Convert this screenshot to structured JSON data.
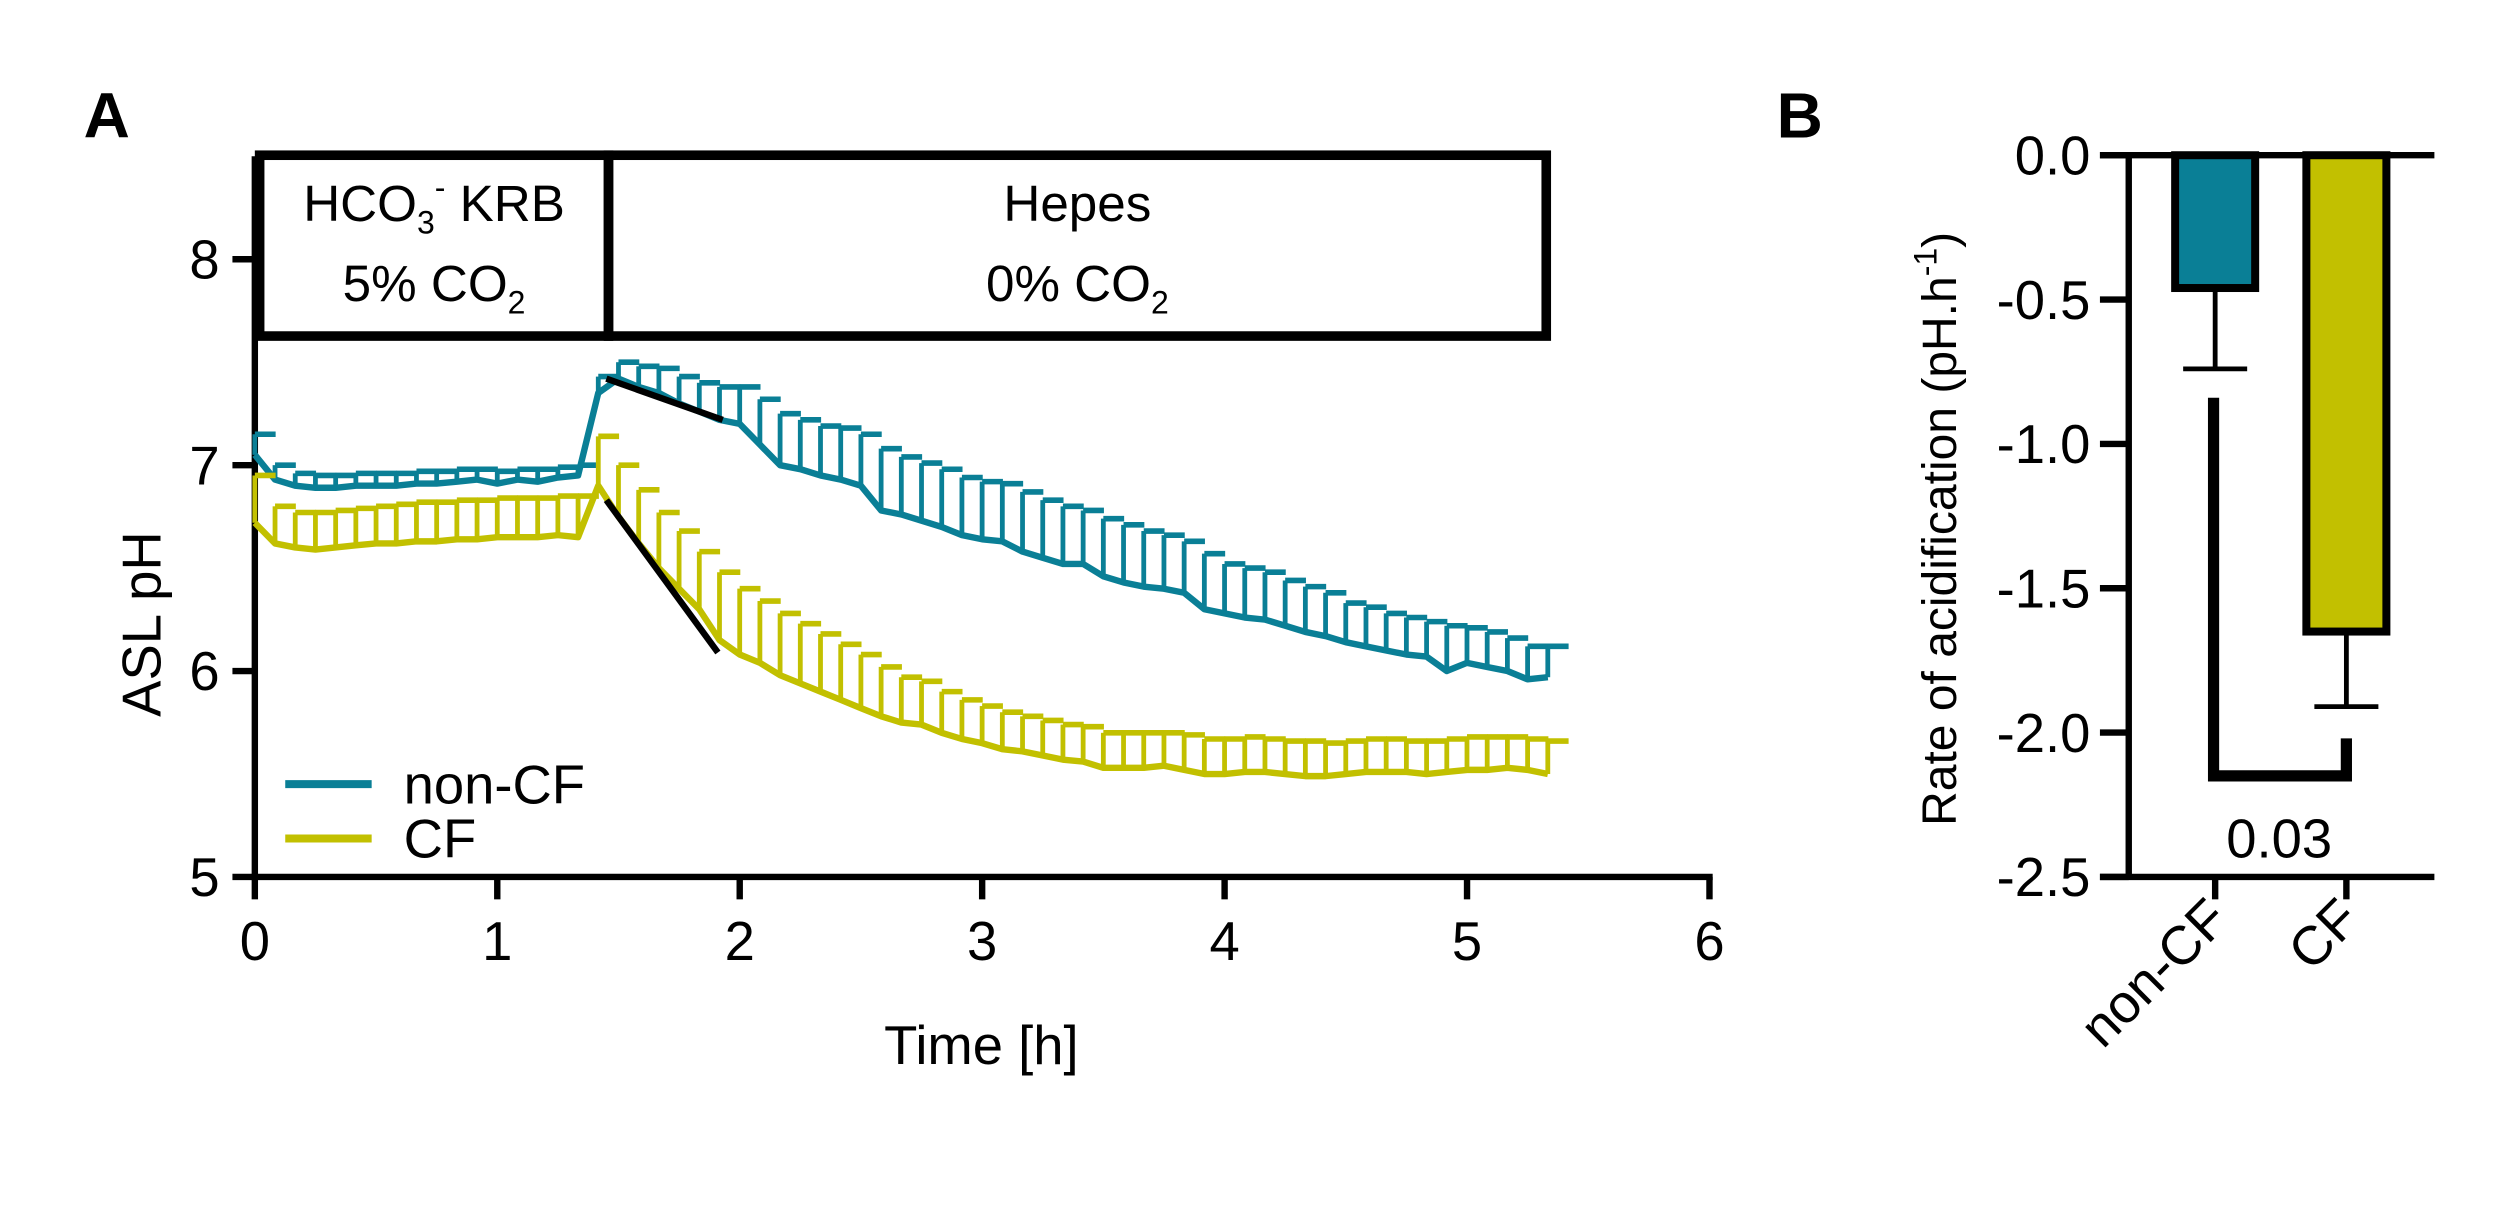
{
  "chart_data": [
    {
      "panel": "A",
      "type": "line",
      "xlabel": "Time [h]",
      "ylabel": "ASL pH",
      "xlim": [
        0,
        6
      ],
      "ylim": [
        5,
        8.5
      ],
      "xticks": [
        "0",
        "1",
        "2",
        "3",
        "4",
        "5",
        "6"
      ],
      "yticks": [
        "5",
        "6",
        "7",
        "8"
      ],
      "legend": {
        "position": "bottom-left",
        "entries": [
          "non-CF",
          "CF"
        ]
      },
      "phases": [
        {
          "line1": "HCO",
          "sub1": "3",
          "sup1": "-",
          "rest1": " KRB",
          "line2": "5% CO",
          "sub2": "2",
          "t_start": 0,
          "t_end": 1.45
        },
        {
          "line1": "Hepes",
          "line2": "0% CO",
          "sub2": "2",
          "t_start": 1.45,
          "t_end": 5.35
        }
      ],
      "time_step_h": 0.08333,
      "series": [
        {
          "name": "non-CF",
          "color": "#0a7f96",
          "mean": [
            7.05,
            6.93,
            6.9,
            6.89,
            6.89,
            6.9,
            6.9,
            6.9,
            6.91,
            6.91,
            6.92,
            6.93,
            6.91,
            6.93,
            6.92,
            6.94,
            6.95,
            7.35,
            7.42,
            7.38,
            7.35,
            7.3,
            7.26,
            7.22,
            7.2,
            7.1,
            7.0,
            6.98,
            6.95,
            6.93,
            6.9,
            6.78,
            6.76,
            6.73,
            6.7,
            6.66,
            6.64,
            6.63,
            6.58,
            6.55,
            6.52,
            6.52,
            6.46,
            6.43,
            6.41,
            6.4,
            6.38,
            6.3,
            6.28,
            6.26,
            6.25,
            6.22,
            6.19,
            6.17,
            6.14,
            6.12,
            6.1,
            6.08,
            6.07,
            6.0,
            6.04,
            6.02,
            6.0,
            5.96,
            5.97
          ],
          "sem": [
            0.1,
            0.07,
            0.06,
            0.06,
            0.06,
            0.06,
            0.06,
            0.06,
            0.06,
            0.06,
            0.06,
            0.05,
            0.06,
            0.05,
            0.06,
            0.05,
            0.05,
            0.08,
            0.08,
            0.1,
            0.12,
            0.13,
            0.14,
            0.16,
            0.18,
            0.22,
            0.25,
            0.24,
            0.24,
            0.25,
            0.25,
            0.3,
            0.28,
            0.28,
            0.28,
            0.28,
            0.28,
            0.28,
            0.29,
            0.28,
            0.28,
            0.26,
            0.28,
            0.28,
            0.27,
            0.26,
            0.25,
            0.27,
            0.24,
            0.24,
            0.23,
            0.22,
            0.22,
            0.21,
            0.19,
            0.19,
            0.18,
            0.18,
            0.17,
            0.22,
            0.17,
            0.17,
            0.16,
            0.16,
            0.15
          ]
        },
        {
          "name": "CF",
          "color": "#c2c000",
          "mean": [
            6.72,
            6.62,
            6.6,
            6.59,
            6.6,
            6.61,
            6.62,
            6.62,
            6.63,
            6.63,
            6.64,
            6.64,
            6.65,
            6.65,
            6.65,
            6.66,
            6.65,
            6.9,
            6.75,
            6.62,
            6.5,
            6.4,
            6.3,
            6.15,
            6.08,
            6.04,
            5.98,
            5.94,
            5.9,
            5.86,
            5.82,
            5.78,
            5.75,
            5.74,
            5.7,
            5.67,
            5.65,
            5.62,
            5.61,
            5.59,
            5.57,
            5.56,
            5.53,
            5.53,
            5.53,
            5.54,
            5.52,
            5.5,
            5.5,
            5.51,
            5.51,
            5.5,
            5.49,
            5.49,
            5.5,
            5.51,
            5.51,
            5.51,
            5.5,
            5.51,
            5.52,
            5.52,
            5.53,
            5.52,
            5.5
          ],
          "sem": [
            0.23,
            0.18,
            0.17,
            0.18,
            0.18,
            0.18,
            0.18,
            0.19,
            0.19,
            0.19,
            0.19,
            0.19,
            0.19,
            0.19,
            0.19,
            0.19,
            0.2,
            0.24,
            0.25,
            0.26,
            0.27,
            0.28,
            0.28,
            0.33,
            0.32,
            0.3,
            0.3,
            0.29,
            0.28,
            0.27,
            0.26,
            0.24,
            0.22,
            0.21,
            0.2,
            0.19,
            0.18,
            0.18,
            0.17,
            0.17,
            0.17,
            0.17,
            0.17,
            0.17,
            0.17,
            0.16,
            0.17,
            0.17,
            0.17,
            0.17,
            0.16,
            0.16,
            0.17,
            0.16,
            0.16,
            0.16,
            0.16,
            0.15,
            0.16,
            0.16,
            0.16,
            0.16,
            0.15,
            0.15,
            0.16
          ]
        }
      ],
      "fit_lines": [
        {
          "series": "non-CF",
          "t": [
            1.45,
            1.93
          ],
          "pH": [
            7.42,
            7.22
          ]
        },
        {
          "series": "CF",
          "t": [
            1.45,
            1.91
          ],
          "pH": [
            6.83,
            6.09
          ]
        }
      ]
    },
    {
      "panel": "B",
      "type": "bar",
      "ylabel_main": "Rate of acidification (pH.h",
      "ylabel_sup": "-1",
      "ylabel_end": ")",
      "ylim": [
        -2.5,
        0
      ],
      "yticks": [
        "0.0",
        "-0.5",
        "-1.0",
        "-1.5",
        "-2.0",
        "-2.5"
      ],
      "categories": [
        "non-CF",
        "CF"
      ],
      "values": [
        -0.46,
        -1.65
      ],
      "sem": [
        0.28,
        0.26
      ],
      "colors": [
        "#0a7f96",
        "#c2c000"
      ],
      "significance": {
        "label": "0.03",
        "between": [
          "non-CF",
          "CF"
        ]
      }
    }
  ],
  "panel_labels": [
    "A",
    "B"
  ]
}
